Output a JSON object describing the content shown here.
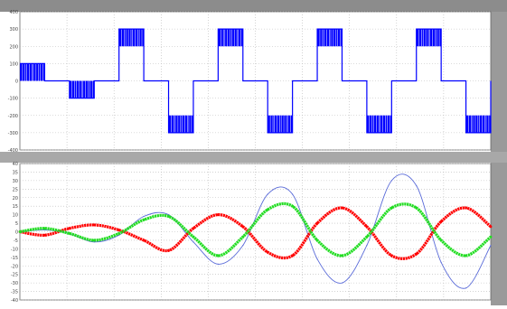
{
  "chart_data": [
    {
      "type": "line",
      "title": "",
      "xlabel": "",
      "ylabel": "",
      "ylim": [
        -400,
        400
      ],
      "yticks": [
        400,
        300,
        200,
        100,
        0,
        -100,
        -200,
        -300,
        -400
      ],
      "grid": true,
      "series": [
        {
          "color": "#0000ff",
          "style": "pwm-stepped",
          "x": [
            0,
            0.12,
            0.24,
            0.36,
            0.48,
            0.6,
            0.72,
            0.84,
            0.96,
            1.08,
            1.2,
            1.32,
            1.44,
            1.56,
            1.68,
            1.8,
            1.92,
            2.04,
            2.16,
            2.28
          ],
          "values": [
            100,
            0,
            -100,
            0,
            300,
            0,
            -300,
            0,
            300,
            0,
            -300,
            0,
            300,
            0,
            -300,
            0,
            300,
            0,
            -300,
            0
          ]
        }
      ]
    },
    {
      "type": "line",
      "title": "",
      "xlabel": "",
      "ylabel": "",
      "ylim": [
        -40,
        40
      ],
      "yticks": [
        40,
        35,
        30,
        25,
        20,
        15,
        10,
        5,
        0,
        -5,
        -10,
        -15,
        -20,
        -25,
        -30,
        -35,
        -40
      ],
      "grid": true,
      "series": [
        {
          "color": "#5a6bd8",
          "x": [
            0,
            0.12,
            0.24,
            0.36,
            0.48,
            0.6,
            0.72,
            0.84,
            0.96,
            1.08,
            1.2,
            1.32,
            1.44,
            1.56,
            1.68,
            1.8,
            1.92,
            2.04,
            2.16,
            2.28
          ],
          "values": [
            0,
            1,
            -1,
            -6,
            -2,
            9,
            10,
            -6,
            -19,
            -8,
            22,
            22,
            -16,
            -30,
            -8,
            30,
            27,
            -18,
            -33,
            -8
          ]
        },
        {
          "color": "#ff0000",
          "x": [
            0,
            0.12,
            0.24,
            0.36,
            0.48,
            0.6,
            0.72,
            0.84,
            0.96,
            1.08,
            1.2,
            1.32,
            1.44,
            1.56,
            1.68,
            1.8,
            1.92,
            2.04,
            2.16,
            2.28
          ],
          "values": [
            0,
            -2,
            2,
            4,
            1,
            -5,
            -11,
            2,
            10,
            3,
            -12,
            -14,
            5,
            14,
            3,
            -14,
            -13,
            6,
            14,
            3
          ]
        },
        {
          "color": "#22dd22",
          "x": [
            0,
            0.12,
            0.24,
            0.36,
            0.48,
            0.6,
            0.72,
            0.84,
            0.96,
            1.08,
            1.2,
            1.32,
            1.44,
            1.56,
            1.68,
            1.8,
            1.92,
            2.04,
            2.16,
            2.28
          ],
          "values": [
            0,
            2,
            -1,
            -5,
            -1,
            7,
            9,
            -3,
            -14,
            -3,
            13,
            15,
            -5,
            -14,
            -3,
            14,
            14,
            -5,
            -14,
            -3
          ]
        }
      ]
    }
  ]
}
